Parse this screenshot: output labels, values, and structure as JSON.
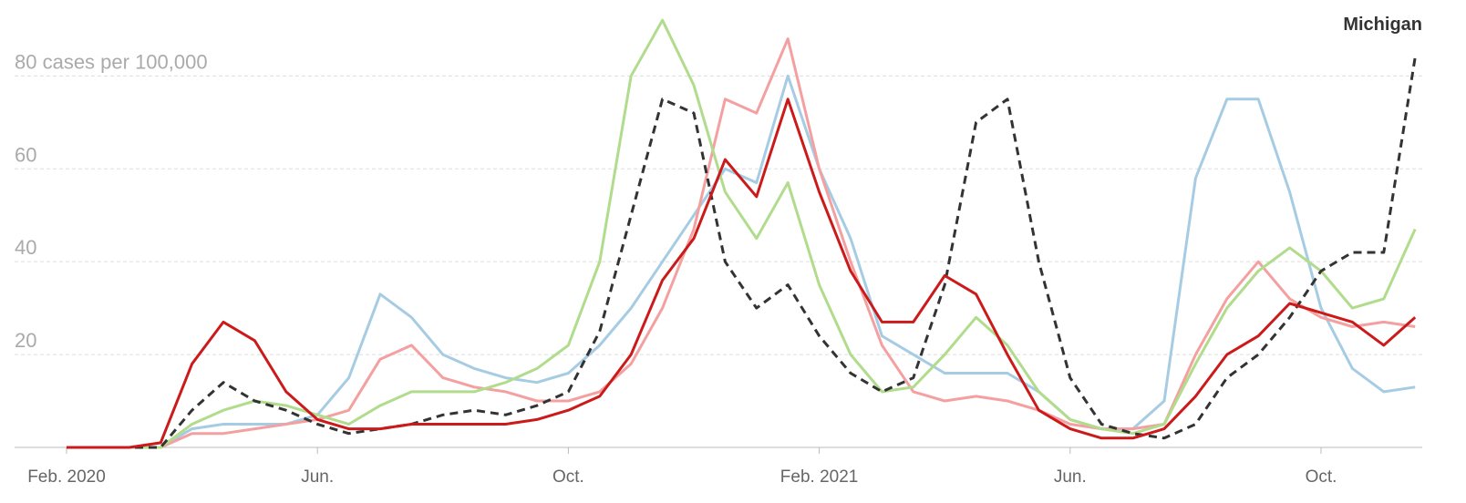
{
  "chart_data": {
    "type": "line",
    "categories": [
      "Feb. 2020",
      null,
      null,
      null,
      null,
      null,
      null,
      null,
      "Jun.",
      null,
      null,
      null,
      null,
      null,
      null,
      null,
      "Oct.",
      null,
      null,
      null,
      null,
      null,
      null,
      null,
      "Feb. 2021",
      null,
      null,
      null,
      null,
      null,
      null,
      null,
      "Jun.",
      null,
      null,
      null,
      null,
      null,
      null,
      null,
      "Oct.",
      null,
      null,
      null
    ],
    "series": [
      {
        "color": "#a6cce3",
        "dashed": false,
        "values": [
          0,
          0,
          0,
          0,
          4,
          5,
          5,
          5,
          7,
          15,
          33,
          28,
          20,
          17,
          15,
          14,
          16,
          22,
          30,
          40,
          50,
          60,
          57,
          80,
          60,
          45,
          24,
          20,
          16,
          16,
          16,
          12,
          6,
          4,
          4,
          10,
          58,
          75,
          75,
          55,
          30,
          17,
          12,
          13
        ]
      },
      {
        "color": "#f4a0a0",
        "dashed": false,
        "values": [
          0,
          0,
          0,
          0,
          3,
          3,
          4,
          5,
          6,
          8,
          19,
          22,
          15,
          13,
          12,
          10,
          10,
          12,
          18,
          30,
          47,
          75,
          72,
          88,
          60,
          40,
          22,
          12,
          10,
          11,
          10,
          8,
          5,
          4,
          4,
          5,
          20,
          32,
          40,
          32,
          28,
          26,
          27,
          26
        ]
      },
      {
        "color": "#b0dc8c",
        "dashed": false,
        "values": [
          0,
          0,
          0,
          0,
          5,
          8,
          10,
          9,
          7,
          5,
          9,
          12,
          12,
          12,
          14,
          17,
          22,
          40,
          80,
          92,
          78,
          55,
          45,
          57,
          35,
          20,
          12,
          13,
          20,
          28,
          22,
          12,
          6,
          4,
          3,
          5,
          18,
          30,
          38,
          43,
          38,
          30,
          32,
          47
        ]
      },
      {
        "name": "Michigan",
        "color": "#333333",
        "dashed": true,
        "values": [
          0,
          0,
          0,
          0,
          8,
          14,
          10,
          8,
          5,
          3,
          4,
          5,
          7,
          8,
          7,
          9,
          12,
          25,
          50,
          75,
          72,
          40,
          30,
          35,
          24,
          16,
          12,
          15,
          35,
          70,
          75,
          40,
          15,
          5,
          3,
          2,
          5,
          15,
          20,
          28,
          38,
          42,
          42,
          84
        ]
      },
      {
        "color": "#cc1a1a",
        "dashed": false,
        "values": [
          0,
          0,
          0,
          1,
          18,
          27,
          23,
          12,
          6,
          4,
          4,
          5,
          5,
          5,
          5,
          6,
          8,
          11,
          20,
          36,
          45,
          62,
          54,
          75,
          55,
          38,
          27,
          27,
          37,
          33,
          20,
          8,
          4,
          2,
          2,
          4,
          11,
          20,
          24,
          31,
          29,
          27,
          22,
          28
        ]
      }
    ],
    "ylim": [
      0,
      94
    ],
    "yticks": [
      20,
      40,
      60,
      {
        "value": 80,
        "label": "80 cases per 100,000"
      }
    ],
    "grid": true
  }
}
